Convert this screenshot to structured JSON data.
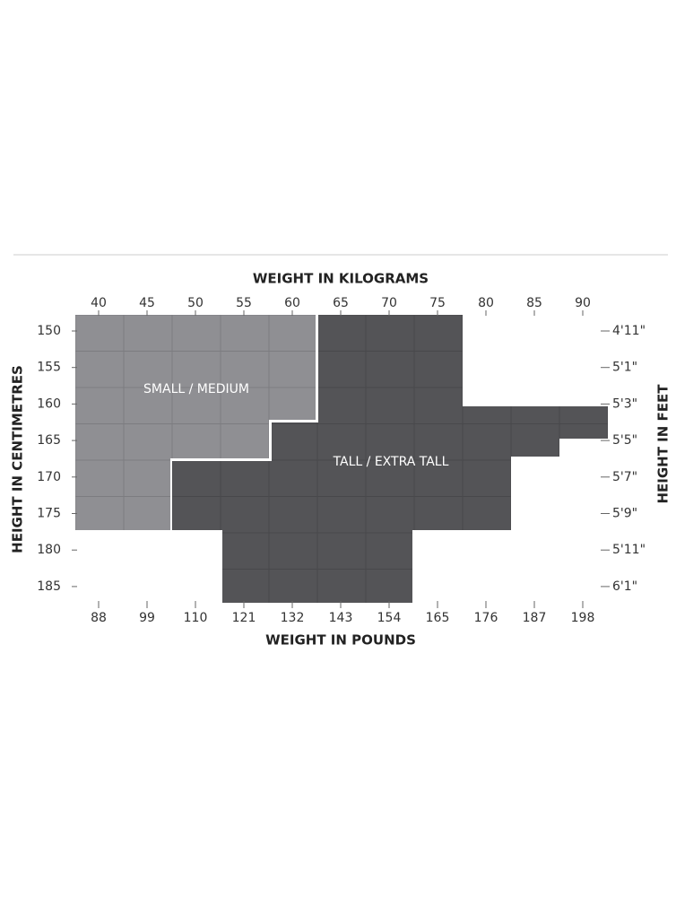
{
  "top_axis": {
    "title": "WEIGHT IN KILOGRAMS",
    "ticks": [
      "40",
      "45",
      "50",
      "55",
      "60",
      "65",
      "70",
      "75",
      "80",
      "85",
      "90"
    ]
  },
  "bottom_axis": {
    "title": "WEIGHT IN POUNDS",
    "ticks": [
      "88",
      "99",
      "110",
      "121",
      "132",
      "143",
      "154",
      "165",
      "176",
      "187",
      "198"
    ]
  },
  "left_axis": {
    "title": "HEIGHT IN CENTIMETRES",
    "ticks": [
      "150",
      "155",
      "160",
      "165",
      "170",
      "175",
      "180",
      "185"
    ]
  },
  "right_axis": {
    "title": "HEIGHT IN FEET",
    "ticks": [
      "4'11\"",
      "5'1\"",
      "5'3\"",
      "5'5\"",
      "5'7\"",
      "5'9\"",
      "5'11\"",
      "6'1\""
    ]
  },
  "regions": [
    {
      "label": "SMALL / MEDIUM"
    },
    {
      "label": "TALL / EXTRA TALL"
    }
  ]
}
